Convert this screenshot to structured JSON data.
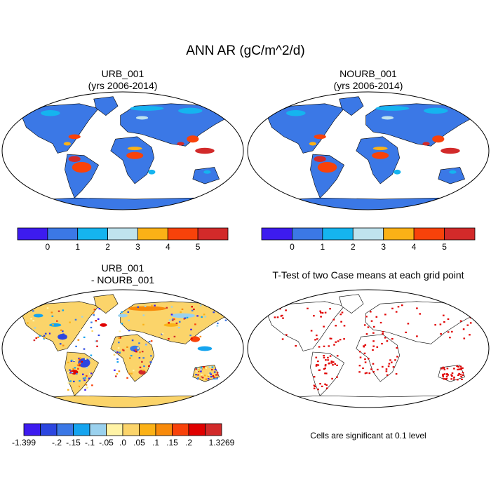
{
  "title": "ANN AR (gC/m^2/d)",
  "panels": [
    {
      "id": "urb",
      "title_line1": "URB_001",
      "title_line2": "(yrs 2006-2014)"
    },
    {
      "id": "nourb",
      "title_line1": "NOURB_001",
      "title_line2": "(yrs 2006-2014)"
    },
    {
      "id": "diff",
      "title_line1": "URB_001",
      "title_line2": "- NOURB_001"
    },
    {
      "id": "ttest",
      "title_line1": "T-Test of two Case means at each grid point",
      "title_line2": ""
    }
  ],
  "ttest_note": "Cells are significant at 0.1 level",
  "colors": {
    "ocean": "#ffffff",
    "coast": "#000000",
    "significant": "#e00000"
  },
  "chart_data": [
    {
      "type": "heatmap",
      "name": "URB_001",
      "colorbar": {
        "colors": [
          "#3d1bef",
          "#3b78e6",
          "#15b4ef",
          "#bfe3ee",
          "#fbb116",
          "#f8420a",
          "#d22a2a"
        ],
        "labels": [
          "0",
          "1",
          "2",
          "3",
          "4",
          "5"
        ]
      }
    },
    {
      "type": "heatmap",
      "name": "NOURB_001",
      "colorbar": {
        "colors": [
          "#3d1bef",
          "#3b78e6",
          "#15b4ef",
          "#bfe3ee",
          "#fbb116",
          "#f8420a",
          "#d22a2a"
        ],
        "labels": [
          "0",
          "1",
          "2",
          "3",
          "4",
          "5"
        ]
      }
    },
    {
      "type": "heatmap",
      "name": "URB_001 - NOURB_001",
      "colorbar": {
        "colors": [
          "#3d1bef",
          "#2c46e0",
          "#3b78e6",
          "#15a4ef",
          "#9ad1ee",
          "#fff3a6",
          "#fbd46a",
          "#fbb116",
          "#f88a0a",
          "#f8420a",
          "#e00000",
          "#d22a2a"
        ],
        "labels": [
          "-1.399",
          "-.2",
          "-.15",
          "-.1",
          "-.05",
          ".0",
          ".05",
          ".1",
          ".15",
          ".2",
          "1.3269"
        ],
        "label_slots": [
          0,
          2,
          3,
          4,
          5,
          6,
          7,
          8,
          9,
          10,
          12
        ]
      }
    },
    {
      "type": "heatmap",
      "name": "T-Test of two Case means at each grid point"
    }
  ]
}
